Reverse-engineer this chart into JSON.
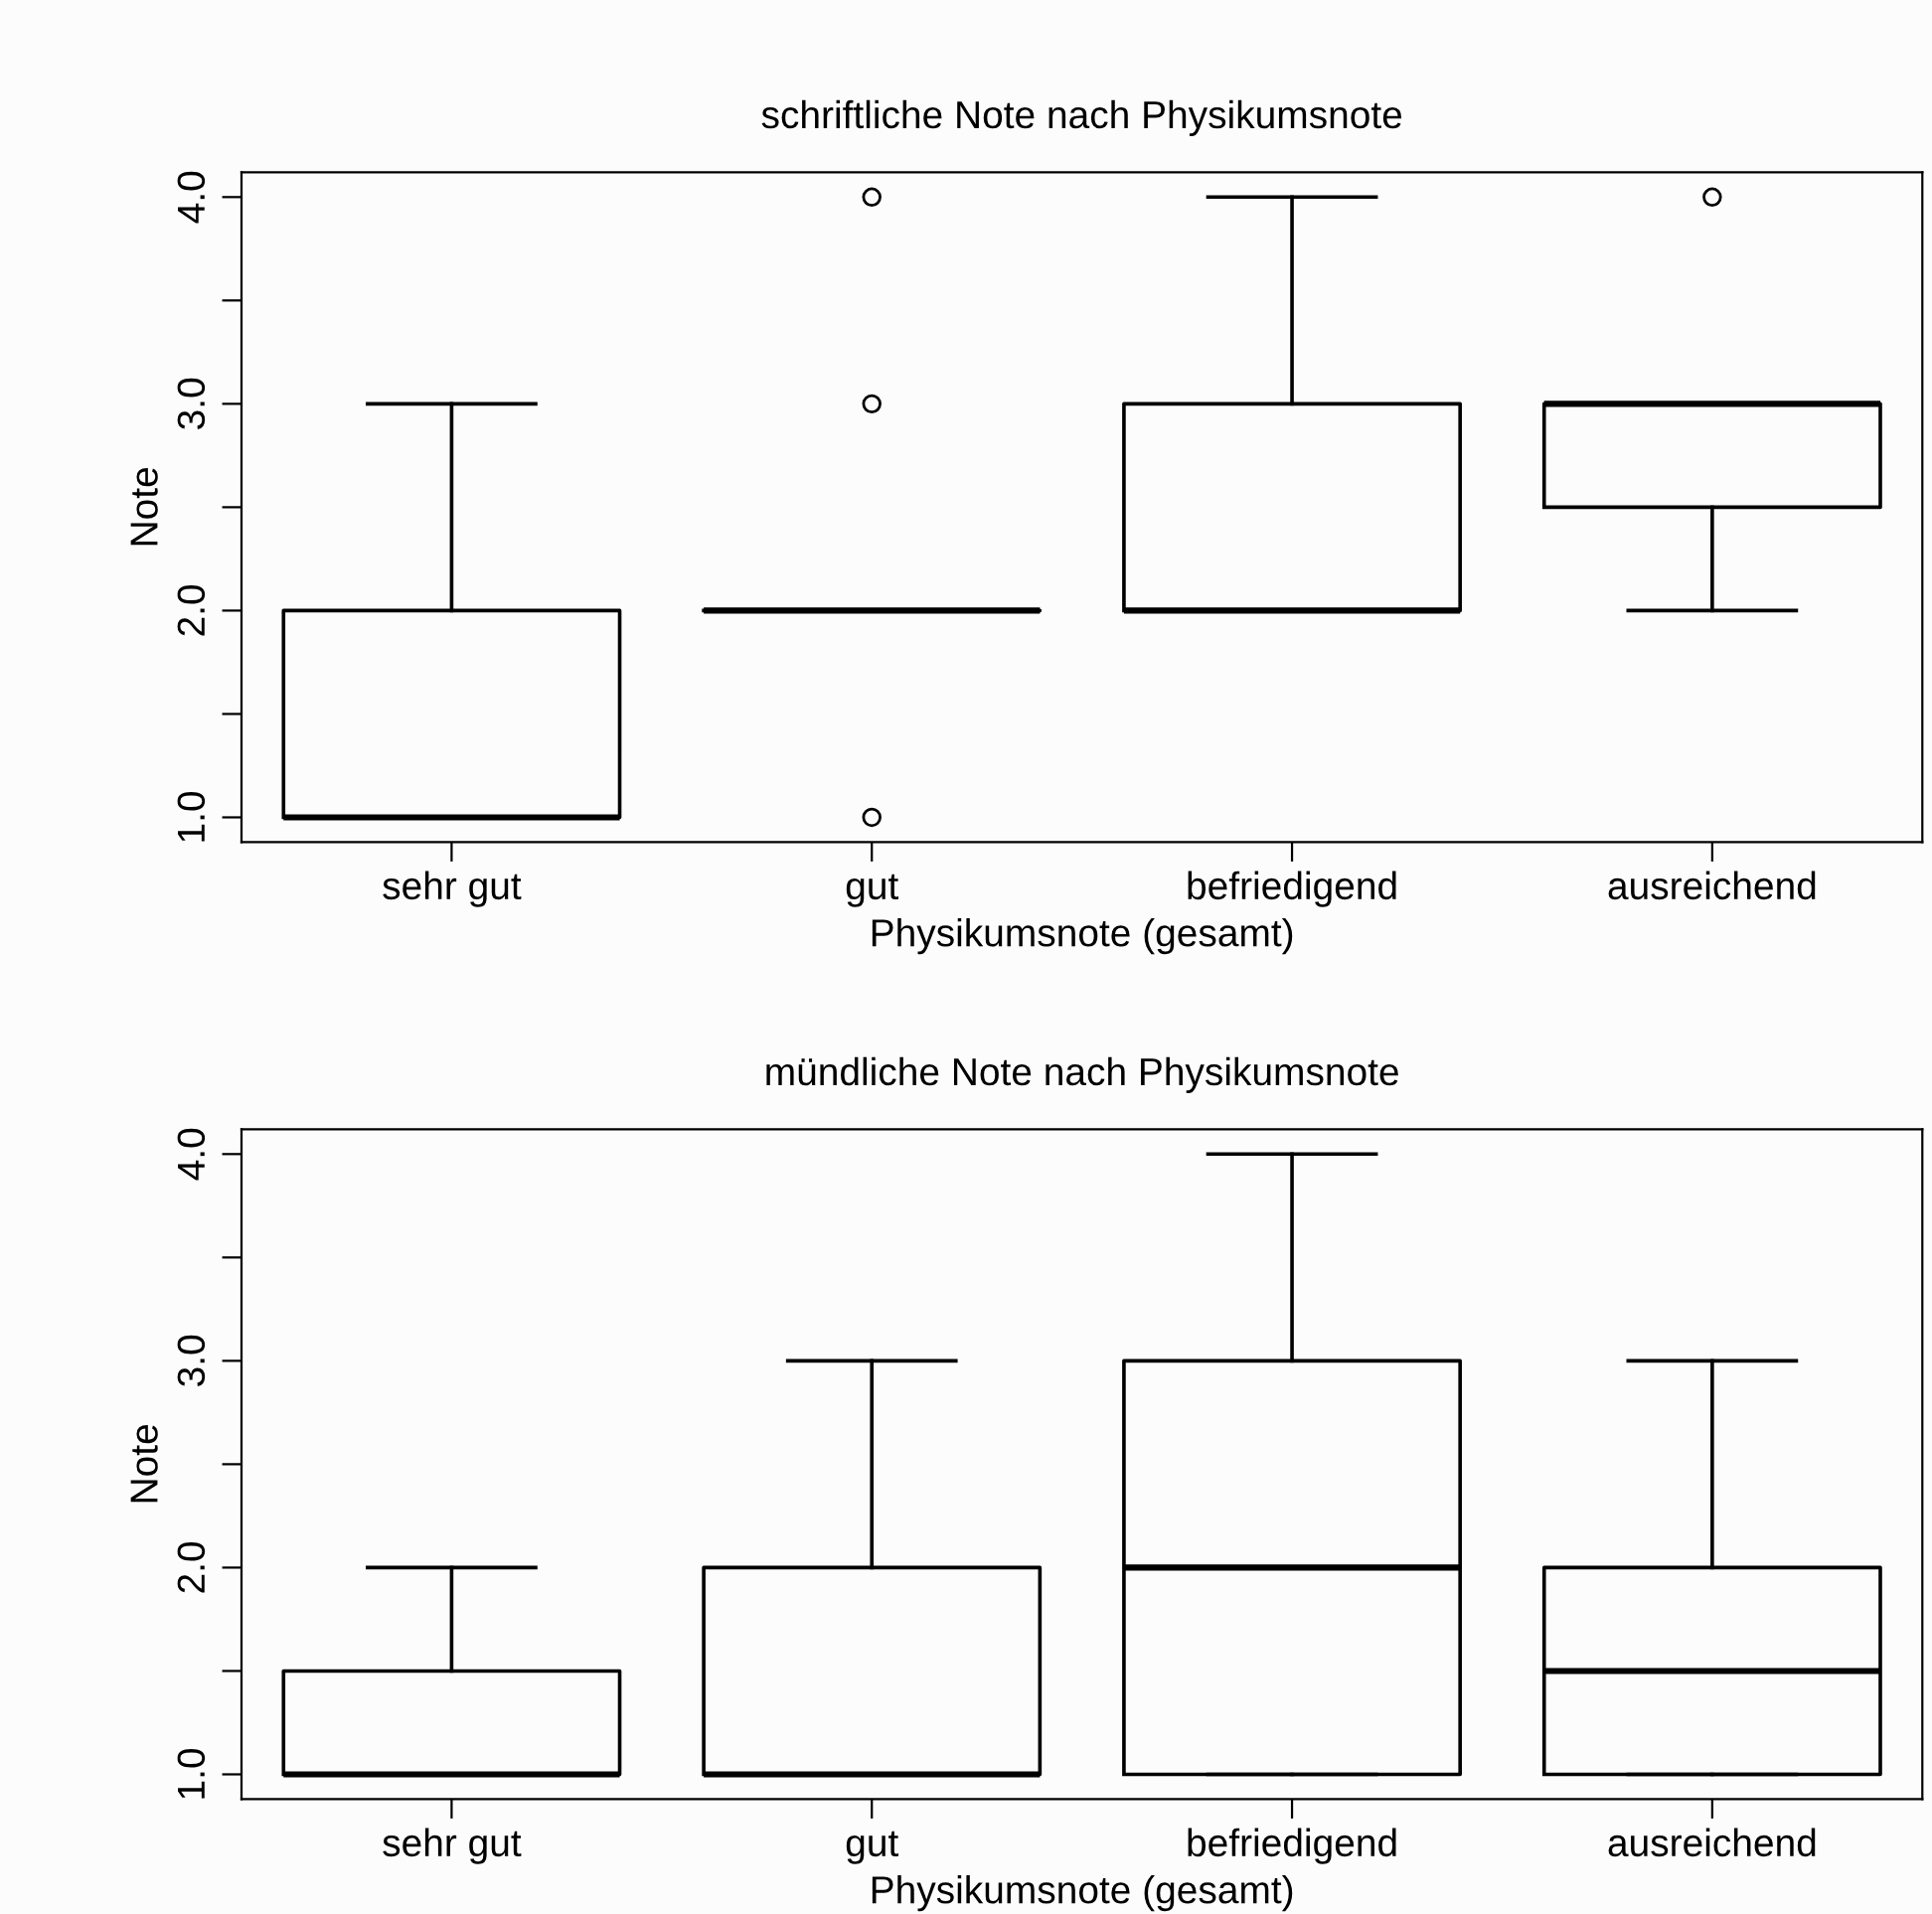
{
  "chart_data": [
    {
      "type": "box",
      "title": "schriftliche Note nach Physikumsnote",
      "xlabel": "Physikumsnote (gesamt)",
      "ylabel": "Note",
      "categories": [
        "sehr gut",
        "gut",
        "befriedigend",
        "ausreichend"
      ],
      "boxes": [
        {
          "low": 1,
          "q1": 1,
          "median": 1,
          "q3": 2,
          "high": 3
        },
        {
          "low": 2,
          "q1": 2,
          "median": 2,
          "q3": 2,
          "high": 2,
          "outliers": [
            1,
            3,
            4
          ]
        },
        {
          "low": 2,
          "q1": 2,
          "median": 2,
          "q3": 3,
          "high": 4
        },
        {
          "low": 2,
          "q1": 2.5,
          "median": 3,
          "q3": 3,
          "high": 3,
          "outliers": [
            4
          ]
        }
      ],
      "ylim": [
        0.88,
        4.12
      ],
      "yticks": [
        {
          "value": 1,
          "label": "1.0"
        },
        {
          "value": 1.5,
          "label": null
        },
        {
          "value": 2,
          "label": "2.0"
        },
        {
          "value": 2.5,
          "label": null
        },
        {
          "value": 3,
          "label": "3.0"
        },
        {
          "value": 3.5,
          "label": null
        },
        {
          "value": 4,
          "label": "4.0"
        }
      ],
      "grid": false,
      "color": "#000000"
    },
    {
      "type": "box",
      "title": "mündliche Note nach Physikumsnote",
      "xlabel": "Physikumsnote (gesamt)",
      "ylabel": "Note",
      "categories": [
        "sehr gut",
        "gut",
        "befriedigend",
        "ausreichend"
      ],
      "boxes": [
        {
          "low": 1,
          "q1": 1,
          "median": 1,
          "q3": 1.5,
          "high": 2
        },
        {
          "low": 1,
          "q1": 1,
          "median": 1,
          "q3": 2,
          "high": 3
        },
        {
          "low": 1,
          "q1": 1,
          "median": 2,
          "q3": 3,
          "high": 4
        },
        {
          "low": 1,
          "q1": 1,
          "median": 1.5,
          "q3": 2,
          "high": 3
        }
      ],
      "ylim": [
        0.88,
        4.12
      ],
      "yticks": [
        {
          "value": 1,
          "label": "1.0"
        },
        {
          "value": 1.5,
          "label": null
        },
        {
          "value": 2,
          "label": "2.0"
        },
        {
          "value": 2.5,
          "label": null
        },
        {
          "value": 3,
          "label": "3.0"
        },
        {
          "value": 3.5,
          "label": null
        },
        {
          "value": 4,
          "label": "4.0"
        }
      ],
      "grid": false,
      "color": "#000000"
    }
  ]
}
